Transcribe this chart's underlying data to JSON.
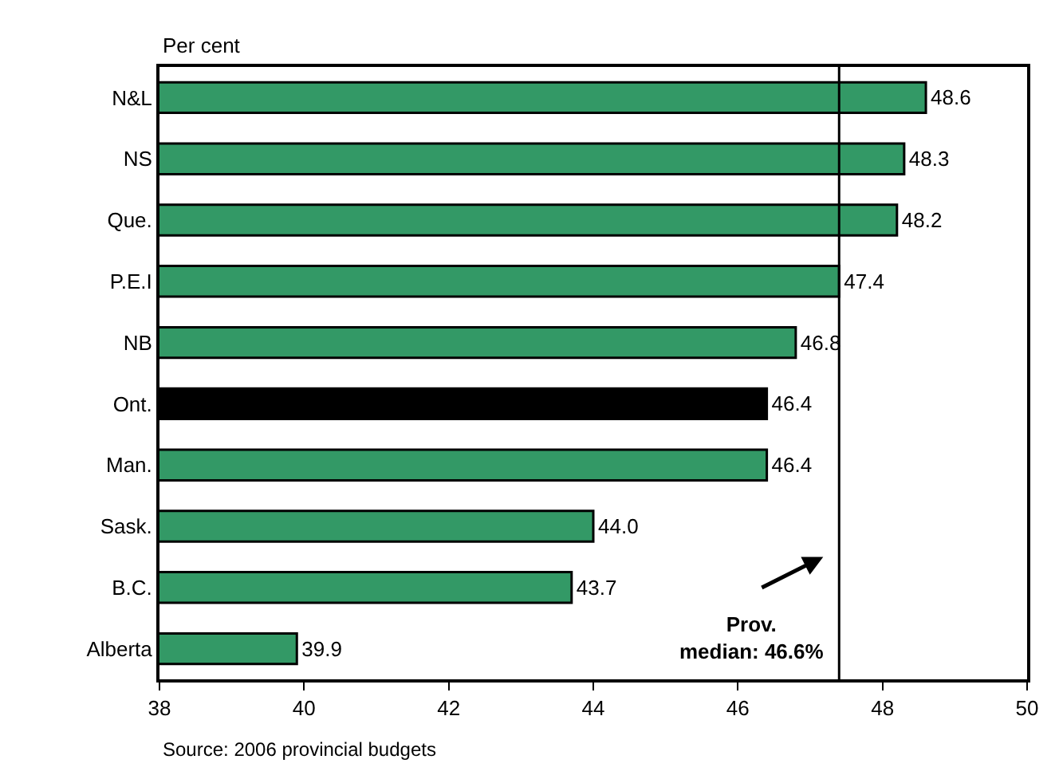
{
  "chart_data": {
    "type": "bar",
    "orientation": "horizontal",
    "title": "Per cent",
    "categories": [
      "N&L",
      "NS",
      "Que.",
      "P.E.I",
      "NB",
      "Ont.",
      "Man.",
      "Sask.",
      "B.C.",
      "Alberta"
    ],
    "values": [
      48.6,
      48.3,
      48.2,
      47.4,
      46.8,
      46.4,
      46.4,
      44.0,
      43.7,
      39.9
    ],
    "value_labels": [
      "48.6",
      "48.3",
      "48.2",
      "47.4",
      "46.8",
      "46.4",
      "46.4",
      "44.0",
      "43.7",
      "39.9"
    ],
    "colors": [
      "#339966",
      "#339966",
      "#339966",
      "#339966",
      "#339966",
      "#000000",
      "#339966",
      "#339966",
      "#339966",
      "#339966"
    ],
    "xlim": [
      38,
      50
    ],
    "xticks": [
      38,
      40,
      42,
      44,
      46,
      48,
      50
    ],
    "ref_lines": [
      {
        "axis": "x",
        "value": 47.4,
        "color": "#000000"
      }
    ],
    "annotations": [
      "Prov.\nmedian: 46.6%",
      "Source: 2006 provincial budgets"
    ],
    "legend": false
  }
}
